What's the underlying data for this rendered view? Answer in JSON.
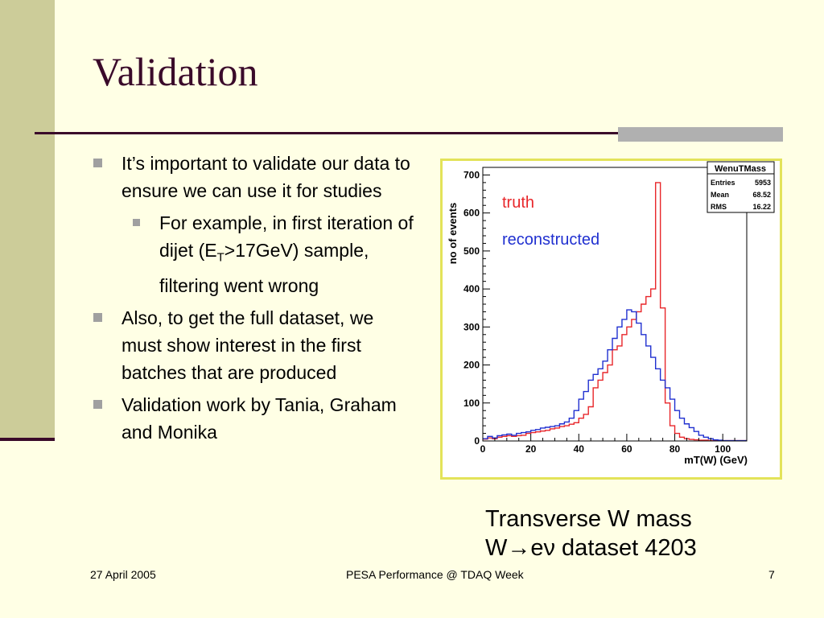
{
  "slide": {
    "title": "Validation",
    "bullets": [
      {
        "text": "It’s important to validate our data to ensure we can use it for studies"
      },
      {
        "sub_pre": "For example, in first iteration of dijet (E",
        "sub_sub": "T",
        "sub_post": ">17GeV) sample, filtering went wrong"
      },
      {
        "text": "Also, to get the full dataset, we must show interest in the first batches that are produced"
      },
      {
        "text": "Validation work by Tania, Graham and Monika"
      }
    ],
    "caption_line1": "Transverse W mass",
    "caption_line2": "W→eν dataset 4203",
    "footer_date": "27 April 2005",
    "footer_center": "PESA Performance @ TDAQ Week",
    "footer_page": "7"
  },
  "colors": {
    "title": "#3A0A2A",
    "sidebar": "#CCCC99",
    "truth": "#E8262A",
    "reconstructed": "#2030D0",
    "plot_frame": "#E3E35A"
  },
  "chart_data": {
    "type": "line",
    "title": "",
    "xlabel": "mT(W) (GeV)",
    "ylabel": "no of events",
    "xlim": [
      0,
      110
    ],
    "ylim": [
      0,
      720
    ],
    "x_ticks": [
      "0",
      "20",
      "40",
      "60",
      "80",
      "100"
    ],
    "y_ticks": [
      "0",
      "100",
      "200",
      "300",
      "400",
      "500",
      "600",
      "700"
    ],
    "legend": [
      "truth",
      "reconstructed"
    ],
    "stats": {
      "name": "WenuTMass",
      "rows": [
        {
          "label": "Entries",
          "value": "5953"
        },
        {
          "label": "Mean",
          "value": "68.52"
        },
        {
          "label": "RMS",
          "value": "16.22"
        }
      ]
    },
    "bin_width": 2,
    "series": [
      {
        "name": "truth",
        "values": [
          5,
          8,
          6,
          10,
          12,
          14,
          12,
          14,
          15,
          20,
          22,
          24,
          26,
          28,
          32,
          34,
          38,
          40,
          44,
          48,
          60,
          70,
          90,
          140,
          160,
          180,
          200,
          240,
          250,
          280,
          300,
          320,
          340,
          360,
          380,
          400,
          680,
          350,
          100,
          40,
          20,
          10,
          6,
          4,
          3,
          2,
          2,
          1,
          1,
          1,
          1,
          1,
          1,
          1,
          1
        ]
      },
      {
        "name": "reconstructed",
        "values": [
          6,
          12,
          8,
          14,
          16,
          18,
          15,
          20,
          22,
          24,
          28,
          30,
          34,
          36,
          38,
          40,
          45,
          50,
          60,
          80,
          110,
          130,
          160,
          175,
          190,
          210,
          240,
          270,
          300,
          320,
          345,
          340,
          310,
          280,
          250,
          220,
          190,
          160,
          140,
          110,
          80,
          60,
          45,
          35,
          25,
          15,
          10,
          6,
          3,
          2,
          1,
          1,
          1,
          1,
          1
        ]
      }
    ]
  }
}
